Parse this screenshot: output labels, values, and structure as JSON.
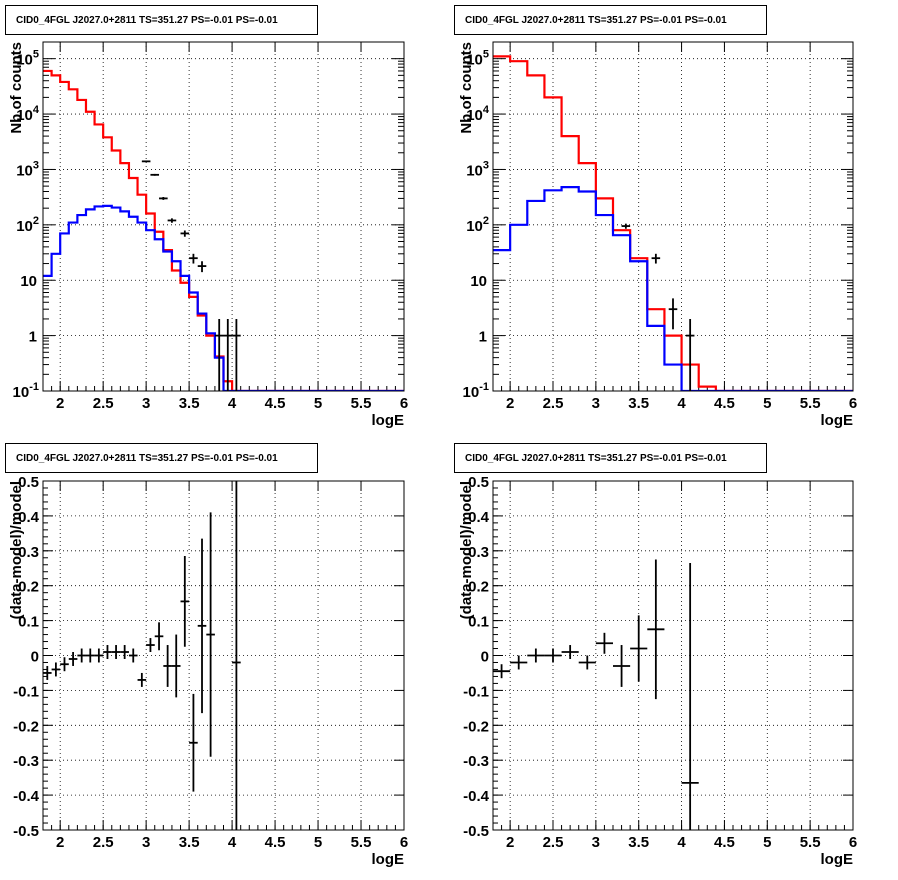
{
  "chart_data": [
    {
      "type": "histogram",
      "title": "CID0_4FGL J2027.0+2811 TS=351.27 PS=-0.01 PS=-0.01",
      "xlabel": "logE",
      "ylabel": "Nb of counts",
      "xlim": [
        1.8,
        6.0
      ],
      "ylim": [
        0.1,
        200000
      ],
      "yscale": "log",
      "grid": true,
      "x_ticks": [
        "2",
        "2.5",
        "3",
        "3.5",
        "4",
        "4.5",
        "5",
        "5.5",
        "6"
      ],
      "y_ticks": [
        "10^{-1}",
        "1",
        "10",
        "10^{2}",
        "10^{3}",
        "10^{4}",
        "10^{5}"
      ],
      "bin_edges": [
        1.8,
        1.9,
        2.0,
        2.1,
        2.2,
        2.3,
        2.4,
        2.5,
        2.6,
        2.7,
        2.8,
        2.9,
        3.0,
        3.1,
        3.2,
        3.3,
        3.4,
        3.5,
        3.6,
        3.7,
        3.8,
        3.9,
        4.0,
        4.1,
        4.2,
        4.3,
        4.4,
        4.5,
        4.6,
        4.7,
        4.8,
        4.9,
        5.0,
        5.1,
        5.2,
        5.3,
        5.4,
        5.5,
        5.6,
        5.7,
        5.8,
        5.9,
        6.0
      ],
      "series": [
        {
          "color": "#ff0000",
          "values": [
            60000,
            50000,
            38000,
            28000,
            18000,
            11000,
            6500,
            3800,
            2200,
            1300,
            700,
            350,
            160,
            75,
            35,
            15,
            9,
            5,
            2.3,
            1.0,
            0.42,
            0.15,
            0.1,
            0.1,
            0.1,
            0.1,
            0.1,
            0.1,
            0.1,
            0.1,
            0.1,
            0.1,
            0.1,
            0.1,
            0.1,
            0.1,
            0.1,
            0.1,
            0.1,
            0.1,
            0.1,
            0.1
          ]
        },
        {
          "color": "#0000ff",
          "values": [
            12,
            30,
            70,
            110,
            150,
            190,
            215,
            220,
            205,
            175,
            140,
            110,
            80,
            55,
            33,
            22,
            12,
            6,
            2.5,
            1.1,
            0.4,
            0.1,
            0.1,
            0.1,
            0.1,
            0.1,
            0.1,
            0.1,
            0.1,
            0.1,
            0.1,
            0.1,
            0.1,
            0.1,
            0.1,
            0.1,
            0.1,
            0.1,
            0.1,
            0.1,
            0.1,
            0.1
          ]
        }
      ],
      "data_points": [
        {
          "x": 3.0,
          "y": 1400,
          "err": 40
        },
        {
          "x": 3.1,
          "y": 800,
          "err": 30
        },
        {
          "x": 3.2,
          "y": 300,
          "err": 18
        },
        {
          "x": 3.3,
          "y": 120,
          "err": 11
        },
        {
          "x": 3.45,
          "y": 70,
          "err": 9
        },
        {
          "x": 3.55,
          "y": 25,
          "err": 5
        },
        {
          "x": 3.65,
          "y": 18,
          "err": 4
        },
        {
          "x": 3.85,
          "y": 1,
          "err": 1
        },
        {
          "x": 3.95,
          "y": 1,
          "err": 1
        },
        {
          "x": 4.05,
          "y": 1,
          "err": 1
        }
      ]
    },
    {
      "type": "histogram",
      "title": "CID0_4FGL J2027.0+2811 TS=351.27 PS=-0.01 PS=-0.01",
      "xlabel": "logE",
      "ylabel": "Nb of counts",
      "xlim": [
        1.8,
        6.0
      ],
      "ylim": [
        0.1,
        200000
      ],
      "yscale": "log",
      "grid": true,
      "x_ticks": [
        "2",
        "2.5",
        "3",
        "3.5",
        "4",
        "4.5",
        "5",
        "5.5",
        "6"
      ],
      "y_ticks": [
        "10^{-1}",
        "1",
        "10",
        "10^{2}",
        "10^{3}",
        "10^{4}",
        "10^{5}"
      ],
      "bin_edges": [
        1.8,
        2.0,
        2.2,
        2.4,
        2.6,
        2.8,
        3.0,
        3.2,
        3.4,
        3.6,
        3.8,
        4.0,
        4.2,
        4.4,
        4.6,
        4.8,
        5.0,
        5.2,
        5.4,
        5.6,
        5.8,
        6.0
      ],
      "series": [
        {
          "color": "#ff0000",
          "values": [
            110000,
            90000,
            50000,
            20000,
            4000,
            1300,
            300,
            80,
            25,
            3,
            1,
            0.3,
            0.12,
            0.1,
            0.1,
            0.1,
            0.1,
            0.1,
            0.1,
            0.1,
            0.1
          ]
        },
        {
          "color": "#0000ff",
          "values": [
            35,
            100,
            270,
            420,
            480,
            400,
            150,
            65,
            22,
            1.5,
            0.3,
            0.1,
            0.1,
            0.1,
            0.1,
            0.1,
            0.1,
            0.1,
            0.1,
            0.1,
            0.1
          ]
        }
      ],
      "data_points": [
        {
          "x": 3.35,
          "y": 95,
          "err": 10
        },
        {
          "x": 3.7,
          "y": 25,
          "err": 5
        },
        {
          "x": 3.9,
          "y": 3,
          "err": 1.7
        },
        {
          "x": 4.1,
          "y": 1,
          "err": 1
        }
      ]
    },
    {
      "type": "scatter",
      "title": "CID0_4FGL J2027.0+2811 TS=351.27 PS=-0.01 PS=-0.01",
      "xlabel": "logE",
      "ylabel": "(data-model)/model",
      "xlim": [
        1.8,
        6.0
      ],
      "ylim": [
        -0.5,
        0.5
      ],
      "grid": true,
      "x_ticks": [
        "2",
        "2.5",
        "3",
        "3.5",
        "4",
        "4.5",
        "5",
        "5.5",
        "6"
      ],
      "y_ticks": [
        "-0.5",
        "-0.4",
        "-0.3",
        "-0.2",
        "-0.1",
        "0",
        "0.1",
        "0.2",
        "0.3",
        "0.4",
        "0.5"
      ],
      "points": [
        {
          "x": 1.85,
          "y": -0.05,
          "xerr": 0.05,
          "yerr": 0.02
        },
        {
          "x": 1.95,
          "y": -0.04,
          "xerr": 0.05,
          "yerr": 0.02
        },
        {
          "x": 2.05,
          "y": -0.025,
          "xerr": 0.05,
          "yerr": 0.02
        },
        {
          "x": 2.15,
          "y": -0.01,
          "xerr": 0.05,
          "yerr": 0.02
        },
        {
          "x": 2.25,
          "y": 0.0,
          "xerr": 0.05,
          "yerr": 0.02
        },
        {
          "x": 2.35,
          "y": 0.0,
          "xerr": 0.05,
          "yerr": 0.02
        },
        {
          "x": 2.45,
          "y": 0.0,
          "xerr": 0.05,
          "yerr": 0.02
        },
        {
          "x": 2.55,
          "y": 0.01,
          "xerr": 0.05,
          "yerr": 0.02
        },
        {
          "x": 2.65,
          "y": 0.01,
          "xerr": 0.05,
          "yerr": 0.02
        },
        {
          "x": 2.75,
          "y": 0.01,
          "xerr": 0.05,
          "yerr": 0.02
        },
        {
          "x": 2.85,
          "y": 0.0,
          "xerr": 0.05,
          "yerr": 0.02
        },
        {
          "x": 2.95,
          "y": -0.07,
          "xerr": 0.05,
          "yerr": 0.02
        },
        {
          "x": 3.05,
          "y": 0.03,
          "xerr": 0.05,
          "yerr": 0.02
        },
        {
          "x": 3.15,
          "y": 0.055,
          "xerr": 0.05,
          "yerr": 0.04
        },
        {
          "x": 3.25,
          "y": -0.03,
          "xerr": 0.05,
          "yerr": 0.06
        },
        {
          "x": 3.35,
          "y": -0.03,
          "xerr": 0.05,
          "yerr": 0.09
        },
        {
          "x": 3.45,
          "y": 0.155,
          "xerr": 0.05,
          "yerr": 0.13
        },
        {
          "x": 3.55,
          "y": -0.25,
          "xerr": 0.05,
          "yerr": 0.14
        },
        {
          "x": 3.65,
          "y": 0.085,
          "xerr": 0.05,
          "yerr": 0.25
        },
        {
          "x": 3.75,
          "y": 0.06,
          "xerr": 0.05,
          "yerr": 0.35
        },
        {
          "x": 4.05,
          "y": -0.02,
          "xerr": 0.05,
          "yerr": 0.6
        }
      ]
    },
    {
      "type": "scatter",
      "title": "CID0_4FGL J2027.0+2811 TS=351.27 PS=-0.01 PS=-0.01",
      "xlabel": "logE",
      "ylabel": "(data-model)/model",
      "xlim": [
        1.8,
        6.0
      ],
      "ylim": [
        -0.5,
        0.5
      ],
      "grid": true,
      "x_ticks": [
        "2",
        "2.5",
        "3",
        "3.5",
        "4",
        "4.5",
        "5",
        "5.5",
        "6"
      ],
      "y_ticks": [
        "-0.5",
        "-0.4",
        "-0.3",
        "-0.2",
        "-0.1",
        "0",
        "0.1",
        "0.2",
        "0.3",
        "0.4",
        "0.5"
      ],
      "points": [
        {
          "x": 1.9,
          "y": -0.045,
          "xerr": 0.1,
          "yerr": 0.02
        },
        {
          "x": 2.1,
          "y": -0.02,
          "xerr": 0.1,
          "yerr": 0.02
        },
        {
          "x": 2.3,
          "y": 0.0,
          "xerr": 0.1,
          "yerr": 0.02
        },
        {
          "x": 2.5,
          "y": 0.0,
          "xerr": 0.1,
          "yerr": 0.02
        },
        {
          "x": 2.7,
          "y": 0.01,
          "xerr": 0.1,
          "yerr": 0.02
        },
        {
          "x": 2.9,
          "y": -0.02,
          "xerr": 0.1,
          "yerr": 0.02
        },
        {
          "x": 3.1,
          "y": 0.035,
          "xerr": 0.1,
          "yerr": 0.03
        },
        {
          "x": 3.3,
          "y": -0.03,
          "xerr": 0.1,
          "yerr": 0.06
        },
        {
          "x": 3.5,
          "y": 0.02,
          "xerr": 0.1,
          "yerr": 0.095
        },
        {
          "x": 3.7,
          "y": 0.075,
          "xerr": 0.1,
          "yerr": 0.2
        },
        {
          "x": 4.1,
          "y": -0.365,
          "xerr": 0.1,
          "yerr": 0.63
        }
      ]
    }
  ]
}
